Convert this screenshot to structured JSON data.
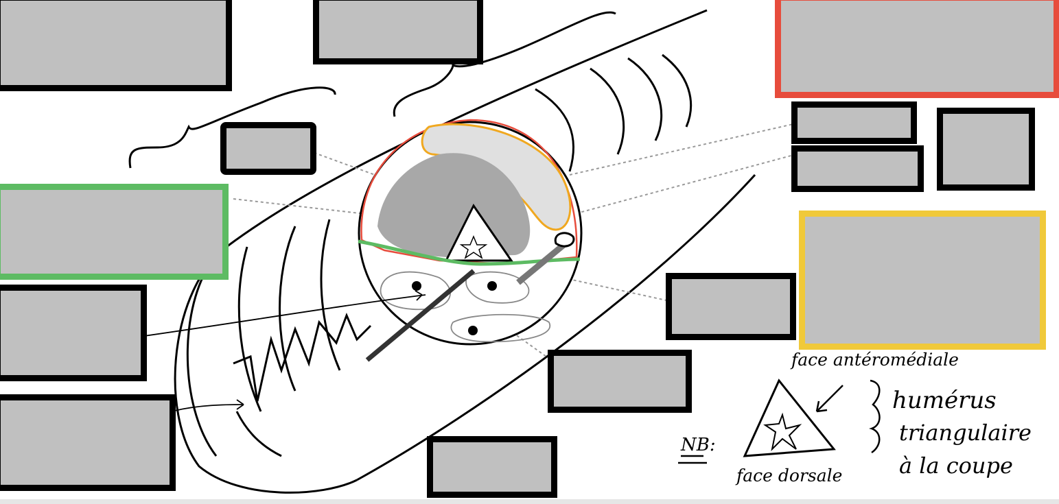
{
  "image_colors": {
    "outline": "#000000",
    "label_fill": "#c0c0c0",
    "red": "#e74c3c",
    "green": "#5dbb63",
    "yellow": "#f0c93a",
    "orange": "#f0a820",
    "shading": "#a8a8a8"
  },
  "note": {
    "nb": "NB:",
    "face_anteromediale": "face antéromédiale",
    "face_dorsale": "face dorsale",
    "line1": "humérus",
    "line2": "triangulaire",
    "line3": "à la coupe"
  },
  "labels": [
    {
      "id": "top-left",
      "color": "#000000"
    },
    {
      "id": "top-center",
      "color": "#000000"
    },
    {
      "id": "top-right",
      "color": "#e74c3c"
    },
    {
      "id": "small-mid",
      "color": "#000000"
    },
    {
      "id": "green",
      "color": "#5dbb63"
    },
    {
      "id": "left-1",
      "color": "#000000"
    },
    {
      "id": "left-2",
      "color": "#000000"
    },
    {
      "id": "right-1",
      "color": "#000000"
    },
    {
      "id": "right-2",
      "color": "#000000"
    },
    {
      "id": "right-small",
      "color": "#000000"
    },
    {
      "id": "yellow",
      "color": "#f0c93a"
    },
    {
      "id": "center-right",
      "color": "#000000"
    },
    {
      "id": "center-low",
      "color": "#000000"
    },
    {
      "id": "bottom",
      "color": "#000000"
    }
  ]
}
